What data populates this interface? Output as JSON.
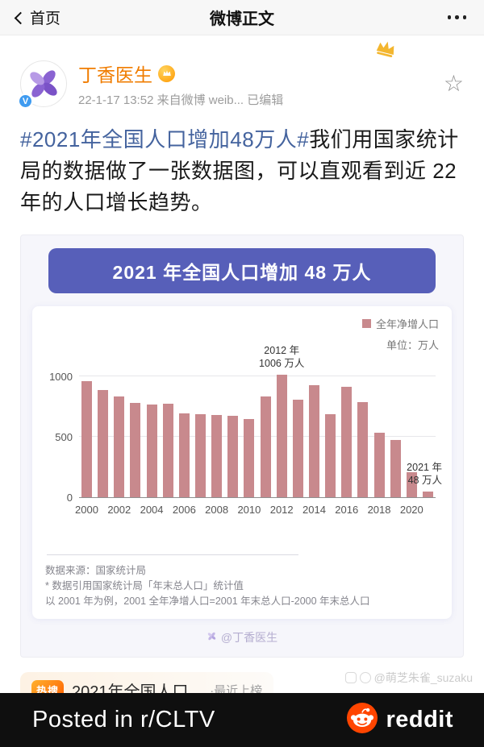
{
  "nav": {
    "back_label": "首页",
    "title": "微博正文"
  },
  "post": {
    "author_name": "丁香医生",
    "meta": "22-1-17 13:52 来自微博 weib... 已编辑",
    "hashtag": "#2021年全国人口增加48万人#",
    "body": "我们用国家统计局的数据做了一张数据图，可以直观看到近 22 年的人口增长趋势。"
  },
  "chart_card": {
    "title": "2021 年全国人口增加 48 万人",
    "legend_label": "全年净增人口",
    "unit_label": "单位：万人",
    "footnote_1": "数据来源：国家统计局",
    "footnote_2": "* 数据引用国家统计局「年末总人口」统计值",
    "footnote_3": "以 2001 年为例，2001 全年净增人口=2001 年末总人口-2000 年末总人口",
    "watermark": "@丁香医生"
  },
  "chart_data": {
    "type": "bar",
    "title": "2021 年全国人口增加 48 万人",
    "categories": [
      "2000",
      "2001",
      "2002",
      "2003",
      "2004",
      "2005",
      "2006",
      "2007",
      "2008",
      "2009",
      "2010",
      "2011",
      "2012",
      "2013",
      "2014",
      "2015",
      "2016",
      "2017",
      "2018",
      "2019",
      "2020",
      "2021"
    ],
    "values": [
      957,
      884,
      826,
      774,
      761,
      768,
      692,
      681,
      673,
      672,
      641,
      825,
      1006,
      804,
      920,
      680,
      906,
      779,
      530,
      467,
      204,
      48
    ],
    "series_name": "全年净增人口",
    "unit": "万人",
    "ylim": [
      0,
      1050
    ],
    "ytick_labels": [
      "0",
      "500",
      "1000"
    ],
    "x_tick_labels_shown": [
      "2000",
      "2002",
      "2004",
      "2006",
      "2008",
      "2010",
      "2012",
      "2014",
      "2016",
      "2018",
      "2020"
    ],
    "x_tick_step": 2,
    "bar_color": "#c8898d",
    "legend_position": "top-right",
    "grid": "horizontal",
    "annotations": [
      {
        "index": 12,
        "lines": [
          "2012 年",
          "1006 万人"
        ]
      },
      {
        "index": 21,
        "lines": [
          "2021 年",
          "48 万人"
        ],
        "align": "right"
      }
    ]
  },
  "hot_search": {
    "badge": "热搜",
    "text": "2021年全国人口...",
    "suffix": "·最近上榜"
  },
  "side_watermark": "@萌芝朱雀_suzaku",
  "footer": {
    "caption": "Posted in r/CLTV",
    "brand": "reddit"
  },
  "icons": {
    "star": "☆"
  }
}
